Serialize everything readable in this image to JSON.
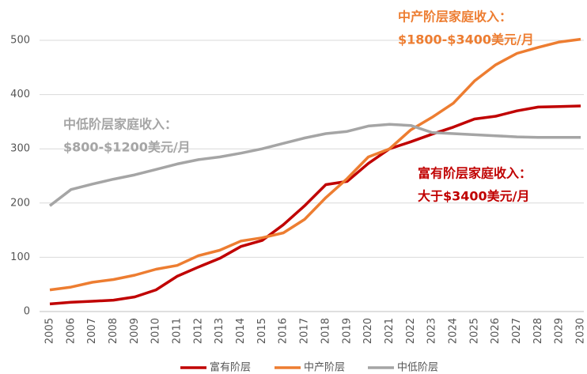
{
  "chart_data": {
    "type": "line",
    "categories": [
      "2005",
      "2006",
      "2007",
      "2008",
      "2009",
      "2010",
      "2011",
      "2012",
      "2013",
      "2014",
      "2015",
      "2016",
      "2017",
      "2018",
      "2019",
      "2020",
      "2021",
      "2022",
      "2023",
      "2024",
      "2025",
      "2026",
      "2027",
      "2028",
      "2029",
      "2030"
    ],
    "series": [
      {
        "name": "富有阶层",
        "color": "#c00000",
        "values": [
          14,
          17,
          19,
          21,
          27,
          40,
          65,
          82,
          98,
          120,
          131,
          160,
          195,
          234,
          240,
          273,
          300,
          313,
          327,
          340,
          355,
          360,
          370,
          377,
          378,
          379
        ]
      },
      {
        "name": "中产阶层",
        "color": "#ed7d31",
        "values": [
          40,
          45,
          54,
          59,
          67,
          78,
          85,
          103,
          113,
          130,
          136,
          145,
          170,
          210,
          245,
          285,
          300,
          335,
          358,
          384,
          425,
          455,
          476,
          487,
          497,
          502
        ]
      },
      {
        "name": "中低阶层",
        "color": "#a5a5a5",
        "values": [
          195,
          225,
          235,
          244,
          252,
          262,
          272,
          280,
          285,
          292,
          300,
          310,
          320,
          328,
          332,
          342,
          345,
          343,
          330,
          328,
          326,
          324,
          322,
          321,
          321,
          321
        ]
      }
    ],
    "ylim": [
      0,
      500
    ],
    "yticks": [
      0,
      100,
      200,
      300,
      400,
      500
    ],
    "grid": true,
    "legend": "bottom",
    "annotations": [
      {
        "lines": [
          "中低阶层家庭收入：",
          "$800-$1200美元/月"
        ],
        "color": "#a5a5a5"
      },
      {
        "lines": [
          "中产阶层家庭收入：",
          "$1800-$3400美元/月"
        ],
        "color": "#ed7d31"
      },
      {
        "lines": [
          "富有阶层家庭收入：",
          "大于$3400美元/月"
        ],
        "color": "#c00000"
      }
    ]
  }
}
